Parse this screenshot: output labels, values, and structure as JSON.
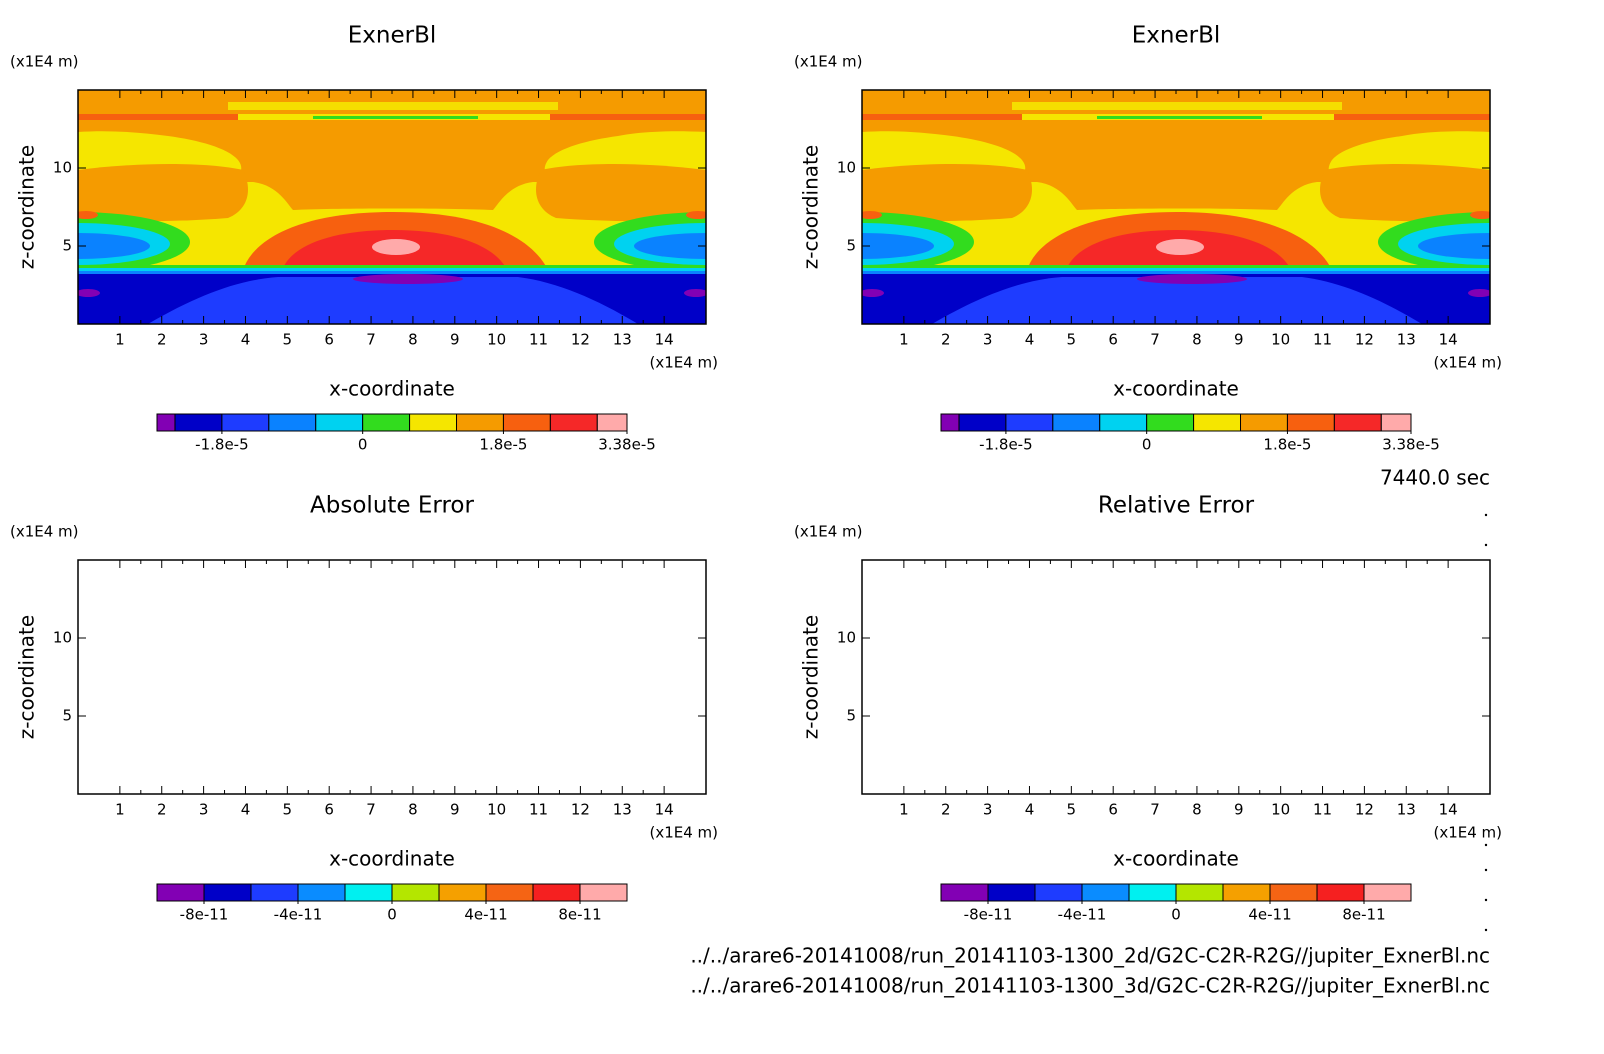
{
  "chart_data": [
    {
      "type": "contour",
      "title": "ExnerBl",
      "xlabel": "x-coordinate",
      "ylabel": "z-coordinate",
      "x_unit": "(x1E4 m)",
      "y_unit": "(x1E4 m)",
      "xlim": [
        0,
        15
      ],
      "xticks": [
        1,
        2,
        3,
        4,
        5,
        6,
        7,
        8,
        9,
        10,
        11,
        12,
        13,
        14
      ],
      "ylim": [
        0,
        15
      ],
      "yticks": [
        5,
        10
      ],
      "colorbar": {
        "clim": [
          -2.63e-05,
          3.38e-05
        ],
        "levels": [
          -2.4e-05,
          -1.8e-05,
          -1.2e-05,
          -6e-06,
          0,
          6e-06,
          1.2e-05,
          1.8e-05,
          2.4e-05,
          3e-05
        ],
        "colors": [
          "#8200b4",
          "#0000c8",
          "#1e3cff",
          "#0a82ff",
          "#00d2f0",
          "#32dc1e",
          "#f5e600",
          "#f59b00",
          "#f7600f",
          "#f52828",
          "#ffaaaa"
        ],
        "ticks": [
          {
            "value": -1.8e-05,
            "label": "-1.8e-5"
          },
          0,
          {
            "value": 1.8e-05,
            "label": "1.8e-5"
          },
          {
            "value": 3.38e-05,
            "label": "3.38e-5"
          }
        ]
      }
    },
    {
      "type": "contour",
      "title": "ExnerBl",
      "xlabel": "x-coordinate",
      "ylabel": "z-coordinate",
      "x_unit": "(x1E4 m)",
      "y_unit": "(x1E4 m)",
      "xlim": [
        0,
        15
      ],
      "xticks": [
        1,
        2,
        3,
        4,
        5,
        6,
        7,
        8,
        9,
        10,
        11,
        12,
        13,
        14
      ],
      "ylim": [
        0,
        15
      ],
      "yticks": [
        5,
        10
      ],
      "colorbar": {
        "clim": [
          -2.63e-05,
          3.38e-05
        ],
        "levels": [
          -2.4e-05,
          -1.8e-05,
          -1.2e-05,
          -6e-06,
          0,
          6e-06,
          1.2e-05,
          1.8e-05,
          2.4e-05,
          3e-05
        ],
        "colors": [
          "#8200b4",
          "#0000c8",
          "#1e3cff",
          "#0a82ff",
          "#00d2f0",
          "#32dc1e",
          "#f5e600",
          "#f59b00",
          "#f7600f",
          "#f52828",
          "#ffaaaa"
        ],
        "ticks": [
          {
            "value": -1.8e-05,
            "label": "-1.8e-5"
          },
          0,
          {
            "value": 1.8e-05,
            "label": "1.8e-5"
          },
          {
            "value": 3.38e-05,
            "label": "3.38e-5"
          }
        ]
      }
    },
    {
      "type": "contour",
      "title": "Absolute Error",
      "xlabel": "x-coordinate",
      "ylabel": "z-coordinate",
      "x_unit": "(x1E4 m)",
      "y_unit": "(x1E4 m)",
      "xlim": [
        0,
        15
      ],
      "xticks": [
        1,
        2,
        3,
        4,
        5,
        6,
        7,
        8,
        9,
        10,
        11,
        12,
        13,
        14
      ],
      "ylim": [
        0,
        15
      ],
      "yticks": [
        5,
        10
      ],
      "colorbar": {
        "clim": [
          -1e-10,
          1e-10
        ],
        "levels": [
          -8e-11,
          -6e-11,
          -4e-11,
          -2e-11,
          0,
          2e-11,
          4e-11,
          6e-11,
          8e-11
        ],
        "colors": [
          "#8200b4",
          "#0000c8",
          "#1e3cff",
          "#0a8cff",
          "#00f0f0",
          "#b4e600",
          "#f5a000",
          "#f56414",
          "#f52020",
          "#ffaaaa"
        ],
        "ticks": [
          -8e-11,
          -4e-11,
          0,
          4e-11,
          8e-11
        ]
      }
    },
    {
      "type": "contour",
      "title": "Relative Error",
      "xlabel": "x-coordinate",
      "ylabel": "z-coordinate",
      "x_unit": "(x1E4 m)",
      "y_unit": "(x1E4 m)",
      "xlim": [
        0,
        15
      ],
      "xticks": [
        1,
        2,
        3,
        4,
        5,
        6,
        7,
        8,
        9,
        10,
        11,
        12,
        13,
        14
      ],
      "ylim": [
        0,
        15
      ],
      "yticks": [
        5,
        10
      ],
      "colorbar": {
        "clim": [
          -1e-10,
          1e-10
        ],
        "levels": [
          -8e-11,
          -6e-11,
          -4e-11,
          -2e-11,
          0,
          2e-11,
          4e-11,
          6e-11,
          8e-11
        ],
        "colors": [
          "#8200b4",
          "#0000c8",
          "#1e3cff",
          "#0a8cff",
          "#00f0f0",
          "#b4e600",
          "#f5a000",
          "#f56414",
          "#f52020",
          "#ffaaaa"
        ],
        "ticks": [
          -8e-11,
          -4e-11,
          0,
          4e-11,
          8e-11
        ]
      }
    }
  ],
  "time": "7440.0 sec",
  "files": [
    "../../arare6-20141008/run_20141103-1300_2d/G2C-C2R-R2G//jupiter_ExnerBl.nc",
    "../../arare6-20141008/run_20141103-1300_3d/G2C-C2R-R2G//jupiter_ExnerBl.nc"
  ]
}
